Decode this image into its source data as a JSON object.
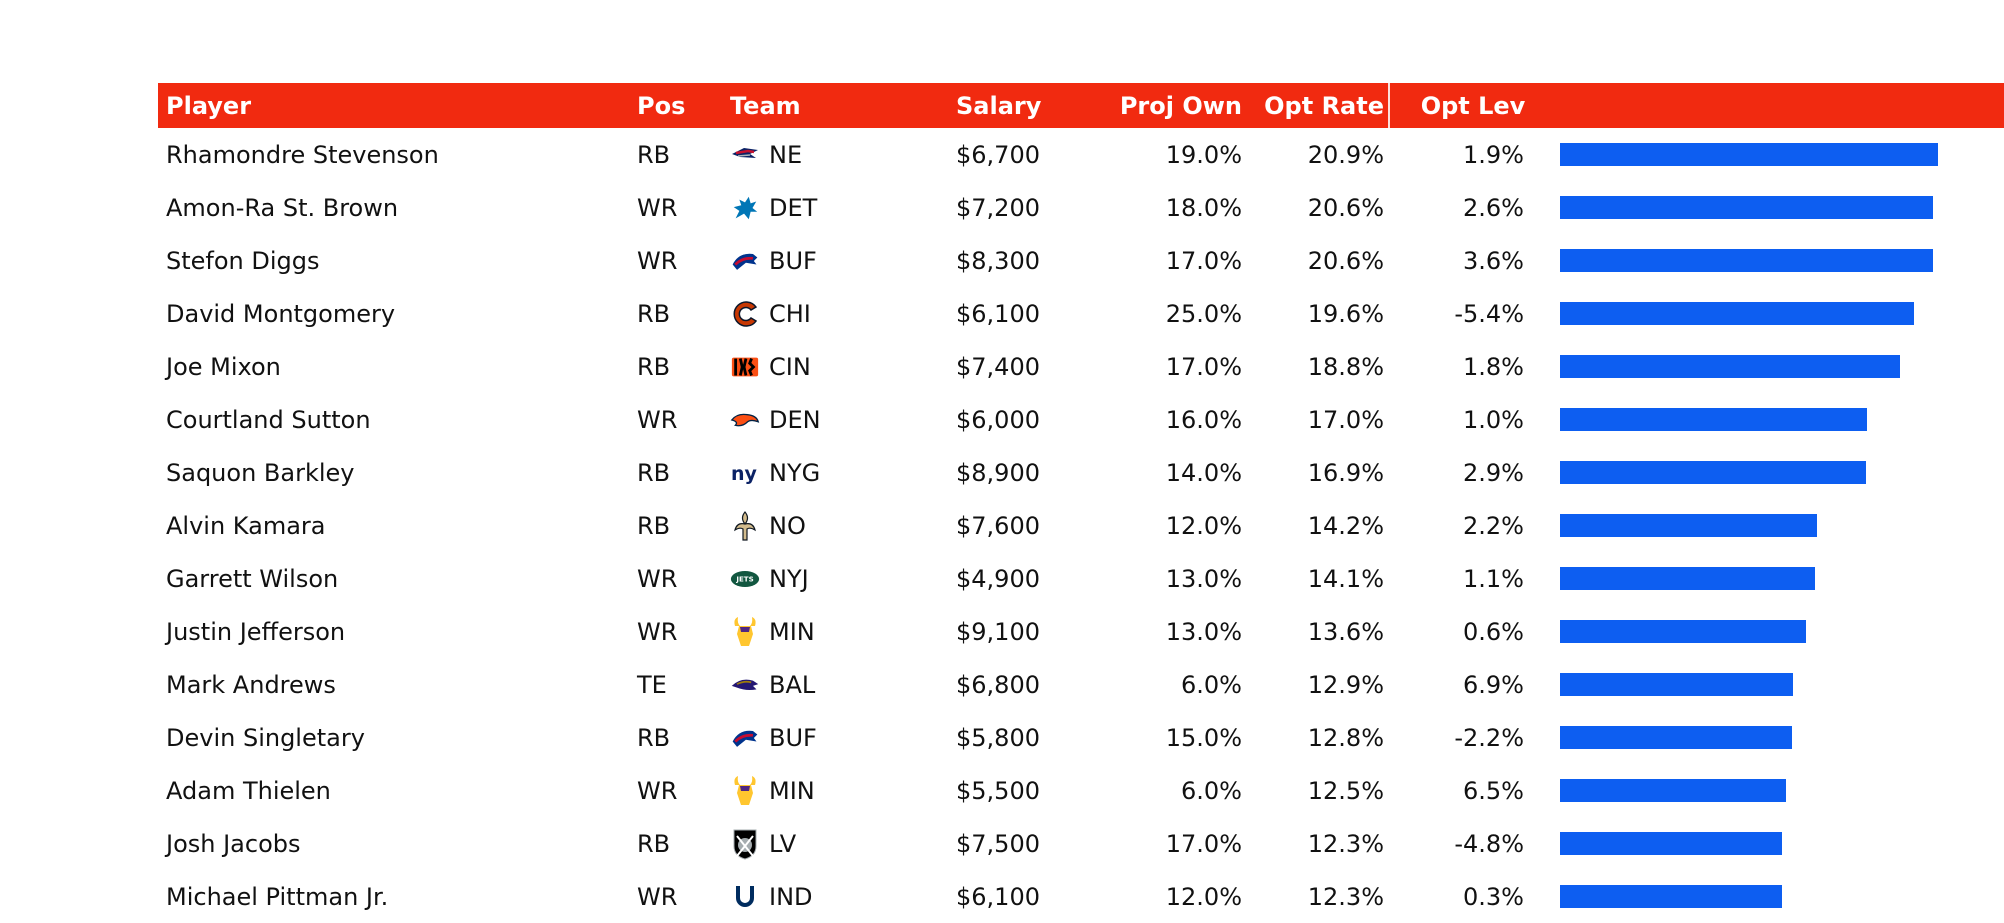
{
  "colors": {
    "header_bg": "#F12A10",
    "bar": "#0D5EF1",
    "header_text": "#FFFFFF"
  },
  "table": {
    "headers": {
      "player": "Player",
      "pos": "Pos",
      "team": "Team",
      "salary": "Salary",
      "proj_own": "Proj Own",
      "opt_rate": "Opt Rate",
      "opt_lev": "Opt Lev"
    },
    "rows": [
      {
        "player": "Rhamondre Stevenson",
        "pos": "RB",
        "team": "NE",
        "team_icon": "patriots-logo-icon",
        "salary": "$6,700",
        "proj_own": "19.0%",
        "opt_rate": "20.9%",
        "opt_lev": "1.9%"
      },
      {
        "player": "Amon-Ra St. Brown",
        "pos": "WR",
        "team": "DET",
        "team_icon": "lions-logo-icon",
        "salary": "$7,200",
        "proj_own": "18.0%",
        "opt_rate": "20.6%",
        "opt_lev": "2.6%"
      },
      {
        "player": "Stefon Diggs",
        "pos": "WR",
        "team": "BUF",
        "team_icon": "bills-logo-icon",
        "salary": "$8,300",
        "proj_own": "17.0%",
        "opt_rate": "20.6%",
        "opt_lev": "3.6%"
      },
      {
        "player": "David Montgomery",
        "pos": "RB",
        "team": "CHI",
        "team_icon": "bears-logo-icon",
        "salary": "$6,100",
        "proj_own": "25.0%",
        "opt_rate": "19.6%",
        "opt_lev": "-5.4%"
      },
      {
        "player": "Joe Mixon",
        "pos": "RB",
        "team": "CIN",
        "team_icon": "bengals-logo-icon",
        "salary": "$7,400",
        "proj_own": "17.0%",
        "opt_rate": "18.8%",
        "opt_lev": "1.8%"
      },
      {
        "player": "Courtland Sutton",
        "pos": "WR",
        "team": "DEN",
        "team_icon": "broncos-logo-icon",
        "salary": "$6,000",
        "proj_own": "16.0%",
        "opt_rate": "17.0%",
        "opt_lev": "1.0%"
      },
      {
        "player": "Saquon Barkley",
        "pos": "RB",
        "team": "NYG",
        "team_icon": "giants-logo-icon",
        "salary": "$8,900",
        "proj_own": "14.0%",
        "opt_rate": "16.9%",
        "opt_lev": "2.9%"
      },
      {
        "player": "Alvin Kamara",
        "pos": "RB",
        "team": "NO",
        "team_icon": "saints-logo-icon",
        "salary": "$7,600",
        "proj_own": "12.0%",
        "opt_rate": "14.2%",
        "opt_lev": "2.2%"
      },
      {
        "player": "Garrett Wilson",
        "pos": "WR",
        "team": "NYJ",
        "team_icon": "jets-logo-icon",
        "salary": "$4,900",
        "proj_own": "13.0%",
        "opt_rate": "14.1%",
        "opt_lev": "1.1%"
      },
      {
        "player": "Justin Jefferson",
        "pos": "WR",
        "team": "MIN",
        "team_icon": "vikings-logo-icon",
        "salary": "$9,100",
        "proj_own": "13.0%",
        "opt_rate": "13.6%",
        "opt_lev": "0.6%"
      },
      {
        "player": "Mark Andrews",
        "pos": "TE",
        "team": "BAL",
        "team_icon": "ravens-logo-icon",
        "salary": "$6,800",
        "proj_own": "6.0%",
        "opt_rate": "12.9%",
        "opt_lev": "6.9%"
      },
      {
        "player": "Devin Singletary",
        "pos": "RB",
        "team": "BUF",
        "team_icon": "bills-logo-icon",
        "salary": "$5,800",
        "proj_own": "15.0%",
        "opt_rate": "12.8%",
        "opt_lev": "-2.2%"
      },
      {
        "player": "Adam Thielen",
        "pos": "WR",
        "team": "MIN",
        "team_icon": "vikings-logo-icon",
        "salary": "$5,500",
        "proj_own": "6.0%",
        "opt_rate": "12.5%",
        "opt_lev": "6.5%"
      },
      {
        "player": "Josh Jacobs",
        "pos": "RB",
        "team": "LV",
        "team_icon": "raiders-logo-icon",
        "salary": "$7,500",
        "proj_own": "17.0%",
        "opt_rate": "12.3%",
        "opt_lev": "-4.8%"
      },
      {
        "player": "Michael Pittman Jr.",
        "pos": "WR",
        "team": "IND",
        "team_icon": "colts-logo-icon",
        "salary": "$6,100",
        "proj_own": "12.0%",
        "opt_rate": "12.3%",
        "opt_lev": "0.3%"
      }
    ]
  },
  "chart_data": {
    "type": "bar",
    "orientation": "horizontal",
    "categories": [
      "Rhamondre Stevenson",
      "Amon-Ra St. Brown",
      "Stefon Diggs",
      "David Montgomery",
      "Joe Mixon",
      "Courtland Sutton",
      "Saquon Barkley",
      "Alvin Kamara",
      "Garrett Wilson",
      "Justin Jefferson",
      "Mark Andrews",
      "Devin Singletary",
      "Adam Thielen",
      "Josh Jacobs",
      "Michael Pittman Jr."
    ],
    "values": [
      20.9,
      20.6,
      20.6,
      19.6,
      18.8,
      17.0,
      16.9,
      14.2,
      14.1,
      13.6,
      12.9,
      12.8,
      12.5,
      12.3,
      12.3
    ],
    "xlim": [
      0,
      20.9
    ],
    "grid": false
  }
}
